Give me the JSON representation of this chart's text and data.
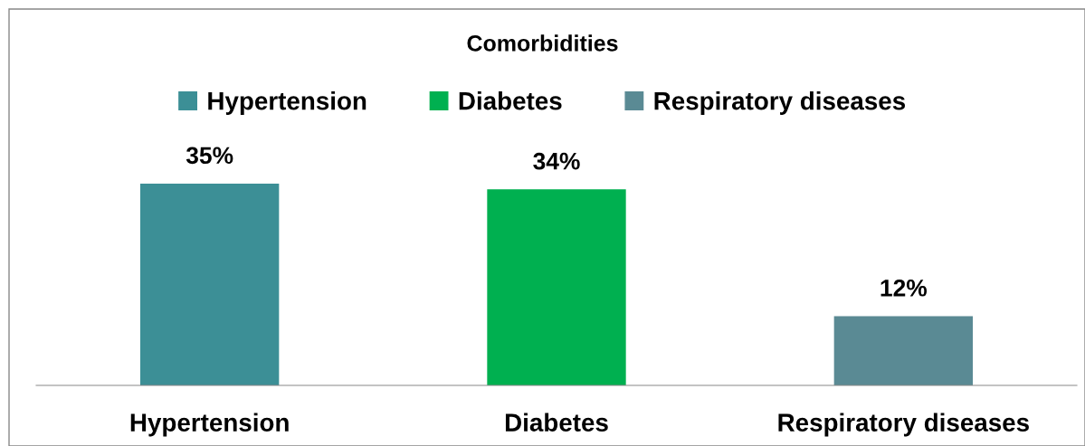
{
  "chart_data": {
    "type": "bar",
    "title": "Comorbidities",
    "categories": [
      "Hypertension",
      "Diabetes",
      "Respiratory diseases"
    ],
    "series": [
      {
        "name": "Hypertension",
        "color": "#3c8f96",
        "values": [
          35,
          null,
          null
        ],
        "value_labels": [
          "35%",
          null,
          null
        ]
      },
      {
        "name": "Diabetes",
        "color": "#00b050",
        "values": [
          null,
          34,
          null
        ],
        "value_labels": [
          null,
          "34%",
          null
        ]
      },
      {
        "name": "Respiratory diseases",
        "color": "#5a8a94",
        "values": [
          null,
          null,
          12
        ],
        "value_labels": [
          null,
          null,
          "12%"
        ]
      }
    ],
    "legend": "top",
    "tick_labels": "x"
  }
}
